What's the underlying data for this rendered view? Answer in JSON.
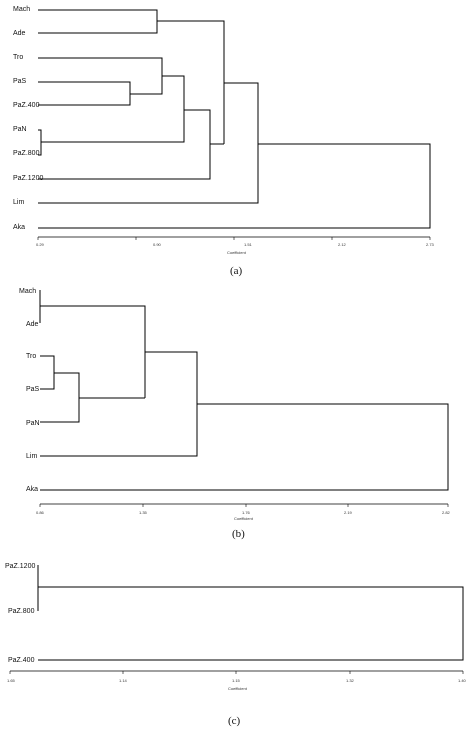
{
  "figure": {
    "captions": [
      "(a)",
      "(b)",
      "(c)"
    ]
  },
  "chart_data": [
    {
      "type": "dendrogram",
      "caption": "(a)",
      "xlabel": "Coefficient",
      "xlim": [
        0.29,
        2.73
      ],
      "ticks": [
        "0.29",
        "0.90",
        "1.51",
        "2.12",
        "2.73"
      ],
      "leaves": [
        "Mach",
        "Ade",
        "Tro",
        "PaS",
        "PaZ.400",
        "PaN",
        "PaZ.800",
        "PaZ.1200",
        "Lim",
        "Aka"
      ],
      "merges": [
        {
          "left": "PaN",
          "right": "PaZ.800",
          "height": 0.29
        },
        {
          "left": "PaS",
          "right": "PaZ.400",
          "height": 0.88
        },
        {
          "left": "Tro",
          "right": [
            "PaS",
            "PaZ.400"
          ],
          "height": 0.96
        },
        {
          "left": "Mach",
          "right": "Ade",
          "height": 0.98
        },
        {
          "left": [
            "Tro",
            "PaS",
            "PaZ.400"
          ],
          "right": [
            "PaN",
            "PaZ.800"
          ],
          "height": 1.06
        },
        {
          "left": [
            "Tro",
            "PaS",
            "PaZ.400",
            "PaN",
            "PaZ.800"
          ],
          "right": "PaZ.1200",
          "height": 1.39
        },
        {
          "left": [
            "Mach",
            "Ade"
          ],
          "right": [
            "Tro",
            "PaS",
            "PaZ.400",
            "PaN",
            "PaZ.800",
            "PaZ.1200"
          ],
          "height": 1.41
        },
        {
          "left": [
            "Mach",
            "Ade",
            "Tro",
            "PaS",
            "PaZ.400",
            "PaN",
            "PaZ.800",
            "PaZ.1200"
          ],
          "right": "Lim",
          "height": 1.53
        },
        {
          "left": [
            "Mach",
            "Ade",
            "Tro",
            "PaS",
            "PaZ.400",
            "PaN",
            "PaZ.800",
            "PaZ.1200",
            "Lim"
          ],
          "right": "Aka",
          "height": 2.73
        }
      ]
    },
    {
      "type": "dendrogram",
      "caption": "(b)",
      "xlabel": "Coefficient",
      "xlim": [
        0.86,
        2.82
      ],
      "ticks": [
        "0.86",
        "1.35",
        "1.76",
        "2.19",
        "2.82"
      ],
      "leaves": [
        "Mach",
        "Ade",
        "Tro",
        "PaS",
        "PaN",
        "Lim",
        "Aka"
      ],
      "merges": [
        {
          "left": "Mach",
          "right": "Ade",
          "height": 0.86
        },
        {
          "left": "Tro",
          "right": "PaS",
          "height": 0.99
        },
        {
          "left": [
            "Tro",
            "PaS"
          ],
          "right": "PaN",
          "height": 1.09
        },
        {
          "left": [
            "Mach",
            "Ade"
          ],
          "right": [
            "Tro",
            "PaS",
            "PaN"
          ],
          "height": 1.35
        },
        {
          "left": [
            "Mach",
            "Ade",
            "Tro",
            "PaS",
            "PaN"
          ],
          "right": "Lim",
          "height": 1.63
        },
        {
          "left": [
            "Mach",
            "Ade",
            "Tro",
            "PaS",
            "PaN",
            "Lim"
          ],
          "right": "Aka",
          "height": 2.82
        }
      ]
    },
    {
      "type": "dendrogram",
      "caption": "(c)",
      "xlabel": "Coefficient",
      "xlim": [
        1.65,
        1.4
      ],
      "ticks": [
        "1.65",
        "1.14",
        "1.15",
        "1.32",
        "1.40"
      ],
      "leaves": [
        "PaZ.1200",
        "PaZ.800",
        "PaZ.400"
      ],
      "merges": [
        {
          "left": "PaZ.1200",
          "right": "PaZ.800",
          "height": 0.0
        },
        {
          "left": [
            "PaZ.1200",
            "PaZ.800"
          ],
          "right": "PaZ.400",
          "height": 1.0
        }
      ]
    }
  ]
}
